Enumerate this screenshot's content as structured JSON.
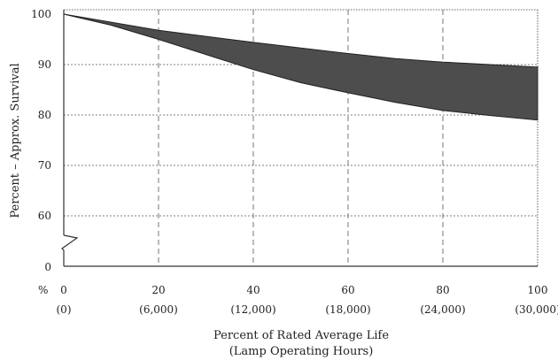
{
  "chart_data": {
    "type": "area",
    "title": "",
    "ylabel": "Percent – Approx. Survival",
    "xlabel_line1": "Percent of Rated Average Life",
    "xlabel_line2": "(Lamp Operating Hours)",
    "x_unit_prefix": "%",
    "xlim": [
      0,
      100
    ],
    "y_ticks": [
      {
        "value": 0,
        "label": "0"
      },
      {
        "value": 60,
        "label": "60"
      },
      {
        "value": 70,
        "label": "70"
      },
      {
        "value": 80,
        "label": "80"
      },
      {
        "value": 90,
        "label": "90"
      },
      {
        "value": 100,
        "label": "100"
      }
    ],
    "y_axis_break": {
      "between": [
        0,
        60
      ]
    },
    "x_ticks": [
      {
        "value": 0,
        "label": "0",
        "sublabel": "(0)"
      },
      {
        "value": 20,
        "label": "20",
        "sublabel": "(6,000)"
      },
      {
        "value": 40,
        "label": "40",
        "sublabel": "(12,000)"
      },
      {
        "value": 60,
        "label": "60",
        "sublabel": "(18,000)"
      },
      {
        "value": 80,
        "label": "80",
        "sublabel": "(24,000)"
      },
      {
        "value": 100,
        "label": "100",
        "sublabel": "(30,000)"
      }
    ],
    "band": {
      "x": [
        0,
        10,
        20,
        30,
        40,
        50,
        60,
        70,
        80,
        90,
        100
      ],
      "upper": [
        100,
        98.4,
        96.8,
        95.6,
        94.4,
        93.3,
        92.2,
        91.2,
        90.5,
        90.0,
        89.5
      ],
      "lower": [
        100,
        97.8,
        95.0,
        92.0,
        89.0,
        86.4,
        84.4,
        82.5,
        80.9,
        79.9,
        79.0
      ]
    },
    "grid": true,
    "colors": {
      "band": "#4d4d4d",
      "grid": "#555555",
      "axis": "#333333"
    }
  }
}
